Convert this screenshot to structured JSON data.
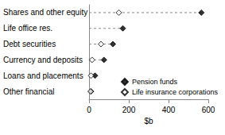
{
  "chart_data": {
    "type": "scatter",
    "orientation": "horizontal",
    "categories": [
      "Shares and other equity",
      "Life office res.",
      "Debt securities",
      "Currency and deposits",
      "Loans and placements",
      "Other financial"
    ],
    "series": [
      {
        "name": "Pension funds",
        "color": "#000000",
        "marker": "diamond",
        "values": [
          565,
          170,
          120,
          75,
          30,
          10
        ]
      },
      {
        "name": "Life insurance corporations",
        "color": "#000000",
        "marker": "open_diamond",
        "values": [
          150,
          null,
          60,
          15,
          10,
          8
        ]
      }
    ],
    "xlabel": "$b",
    "xlim": [
      0,
      600
    ],
    "xticks": [
      0,
      200,
      400,
      600
    ],
    "legend": "lower right",
    "grid": false
  }
}
